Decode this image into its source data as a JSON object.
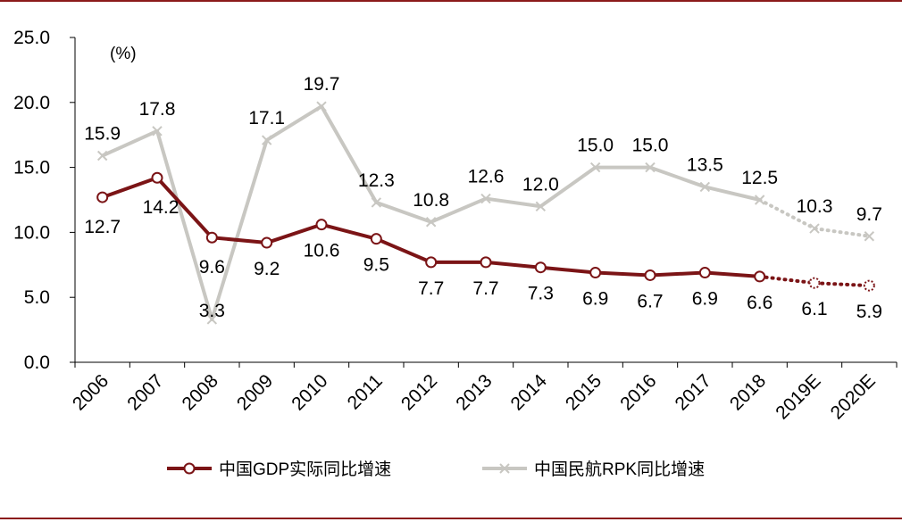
{
  "chart_data": {
    "type": "line",
    "unit_label": "(%)",
    "categories": [
      "2006",
      "2007",
      "2008",
      "2009",
      "2010",
      "2011",
      "2012",
      "2013",
      "2014",
      "2015",
      "2016",
      "2017",
      "2018",
      "2019E",
      "2020E"
    ],
    "ylim": [
      0,
      25
    ],
    "yticks": [
      "0.0",
      "5.0",
      "10.0",
      "15.0",
      "20.0",
      "25.0"
    ],
    "grid": false,
    "legend_position": "bottom",
    "series": [
      {
        "name": "中国GDP实际同比增速",
        "color": "#7b1416",
        "marker": "circle",
        "values": [
          12.7,
          14.2,
          9.6,
          9.2,
          10.6,
          9.5,
          7.7,
          7.7,
          7.3,
          6.9,
          6.7,
          6.9,
          6.6,
          6.1,
          5.9
        ],
        "labels": [
          "12.7",
          "14.2",
          "9.6",
          "9.2",
          "10.6",
          "9.5",
          "7.7",
          "7.7",
          "7.3",
          "6.9",
          "6.7",
          "6.9",
          "6.6",
          "6.1",
          "5.9"
        ],
        "forecast_from_index": 12
      },
      {
        "name": "中国民航RPK同比增速",
        "color": "#c8c7c2",
        "marker": "x",
        "values": [
          15.9,
          17.8,
          3.3,
          17.1,
          19.7,
          12.3,
          10.8,
          12.6,
          12.0,
          15.0,
          15.0,
          13.5,
          12.5,
          10.3,
          9.7
        ],
        "labels": [
          "15.9",
          "17.8",
          "3.3",
          "17.1",
          "19.7",
          "12.3",
          "10.8",
          "12.6",
          "12.0",
          "15.0",
          "15.0",
          "13.5",
          "12.5",
          "10.3",
          "9.7"
        ],
        "forecast_from_index": 12
      }
    ]
  }
}
